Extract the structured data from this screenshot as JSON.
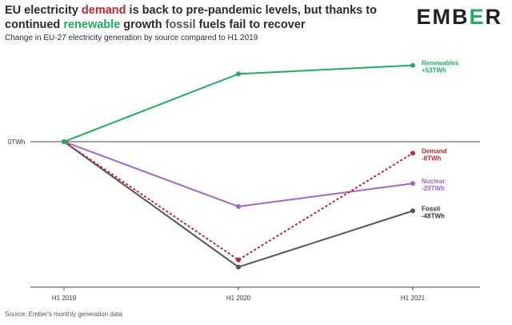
{
  "header": {
    "title_parts": [
      {
        "text": "EU electricity ",
        "color": "#2b2b2b"
      },
      {
        "text": "demand",
        "color": "#c1272d"
      },
      {
        "text": " is back to pre-pandemic levels, but thanks to continued ",
        "color": "#2b2b2b"
      },
      {
        "text": "renewable",
        "color": "#1bb05d"
      },
      {
        "text": " growth ",
        "color": "#2b2b2b"
      },
      {
        "text": "fossil",
        "color": "#555555"
      },
      {
        "text": " fuels fail to recover",
        "color": "#2b2b2b"
      }
    ],
    "subtitle": "Change in EU-27 electricity generation by source compared to H1 2019"
  },
  "logo": {
    "part1": "EMB",
    "accent": "E",
    "part2": "R",
    "accent_color": "#1bb05d"
  },
  "source": "Source: Ember's monthly generation data",
  "chart_data": {
    "type": "line",
    "x": [
      "H1 2019",
      "H1 2020",
      "H1 2021"
    ],
    "y_zero_label": "0TWh",
    "series": [
      {
        "name": "Renewables",
        "value_label": "+53TWh",
        "values": [
          0,
          47,
          53
        ],
        "color": "#1bb05d",
        "dashed": false,
        "label_color": "#1bb05d"
      },
      {
        "name": "Demand",
        "value_label": "-8TWh",
        "values": [
          0,
          -82,
          -8
        ],
        "color": "#c1272d",
        "dashed": true,
        "label_color": "#c1272d"
      },
      {
        "name": "Nuclear",
        "value_label": "-29TWh",
        "values": [
          0,
          -45,
          -29
        ],
        "color": "#a066c8",
        "dashed": false,
        "label_color": "#a066c8"
      },
      {
        "name": "Fossil",
        "value_label": "-48TWh",
        "values": [
          0,
          -87,
          -48
        ],
        "color": "#555555",
        "dashed": false,
        "label_color": "#333333"
      }
    ],
    "ylim": [
      -101,
      58
    ],
    "grid": false,
    "legend": "inline-right"
  }
}
